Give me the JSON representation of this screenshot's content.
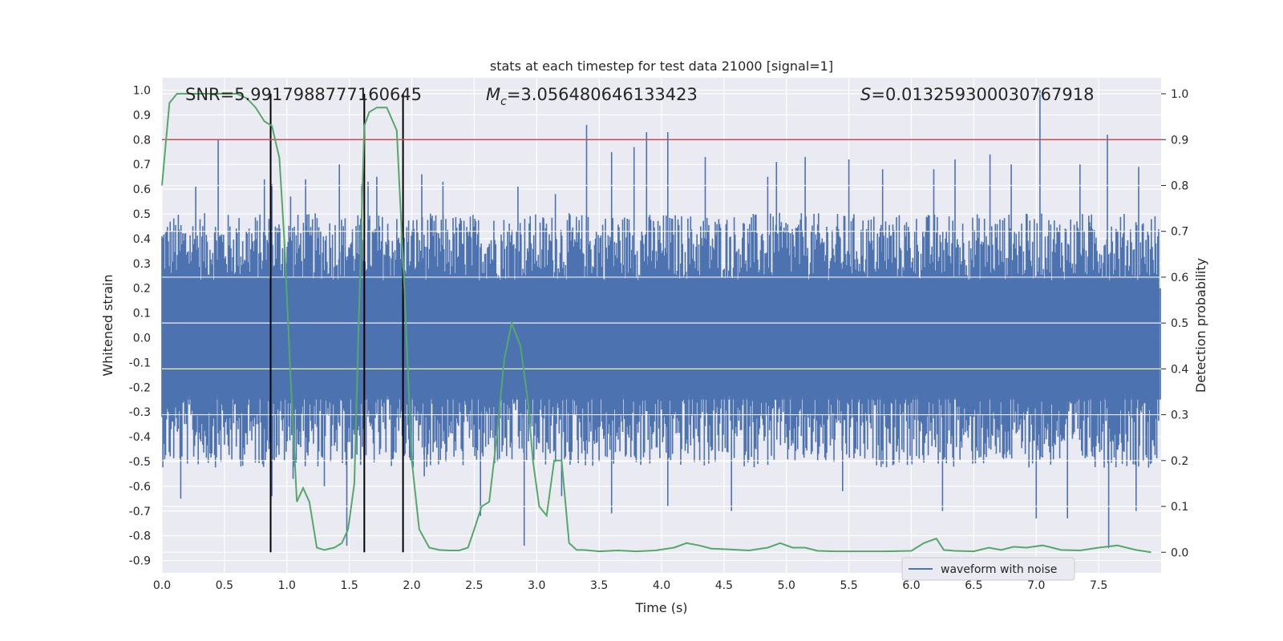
{
  "chart_data": {
    "type": "line",
    "title": "stats at each timestep for test data 21000 [signal=1]",
    "xlabel": "Time (s)",
    "ylabel": "Whitened strain",
    "ylabel_right": "Detection probability",
    "xlim": [
      0.0,
      8.0
    ],
    "ylim": [
      -0.95,
      1.05
    ],
    "ylim_right": [
      -0.045,
      1.035
    ],
    "x_ticks": [
      "0.0",
      "0.5",
      "1.0",
      "1.5",
      "2.0",
      "2.5",
      "3.0",
      "3.5",
      "4.0",
      "4.5",
      "5.0",
      "5.5",
      "6.0",
      "6.5",
      "7.0",
      "7.5"
    ],
    "y_ticks": [
      "1.0",
      "0.9",
      "0.8",
      "0.7",
      "0.6",
      "0.5",
      "0.4",
      "0.3",
      "0.2",
      "0.1",
      "0.0",
      "-0.1",
      "-0.2",
      "-0.3",
      "-0.4",
      "-0.5",
      "-0.6",
      "-0.7",
      "-0.8",
      "-0.9"
    ],
    "y_ticks_right": [
      "1.0",
      "0.9",
      "0.8",
      "0.7",
      "0.6",
      "0.5",
      "0.4",
      "0.3",
      "0.2",
      "0.1",
      "0.0"
    ],
    "grid": true,
    "legend_position": "lower-right",
    "annotations": {
      "snr": "SNR=5.9917988777160645",
      "mc_symbol": "M",
      "mc_sub": "c",
      "mc_value": "=3.056480646133423",
      "s_symbol": "S",
      "s_value": "=0.013259300030767918"
    },
    "series": [
      {
        "name": "waveform with noise",
        "axis": "left",
        "color": "#4c72b0",
        "envelope_base": 0.42,
        "upper_spikes": [
          [
            0.45,
            0.8
          ],
          [
            0.27,
            0.61
          ],
          [
            0.82,
            0.64
          ],
          [
            0.88,
            0.62
          ],
          [
            1.03,
            0.57
          ],
          [
            1.15,
            0.64
          ],
          [
            1.42,
            0.7
          ],
          [
            1.6,
            0.62
          ],
          [
            1.65,
            0.63
          ],
          [
            1.72,
            0.65
          ],
          [
            2.08,
            0.66
          ],
          [
            2.25,
            0.63
          ],
          [
            2.85,
            0.61
          ],
          [
            3.15,
            0.58
          ],
          [
            3.4,
            0.86
          ],
          [
            3.6,
            0.75
          ],
          [
            3.78,
            0.77
          ],
          [
            3.88,
            0.83
          ],
          [
            4.05,
            0.83
          ],
          [
            4.35,
            0.73
          ],
          [
            4.85,
            0.65
          ],
          [
            4.92,
            0.71
          ],
          [
            5.15,
            0.73
          ],
          [
            5.5,
            0.72
          ],
          [
            5.77,
            0.68
          ],
          [
            6.18,
            0.68
          ],
          [
            6.35,
            0.72
          ],
          [
            6.63,
            0.74
          ],
          [
            6.8,
            0.7
          ],
          [
            7.03,
            1.0
          ],
          [
            7.35,
            0.7
          ],
          [
            7.57,
            0.82
          ],
          [
            7.82,
            0.69
          ]
        ],
        "lower_spikes": [
          [
            0.15,
            -0.65
          ],
          [
            0.88,
            -0.64
          ],
          [
            1.05,
            -0.57
          ],
          [
            1.48,
            -0.84
          ],
          [
            1.3,
            -0.6
          ],
          [
            2.1,
            -0.56
          ],
          [
            2.55,
            -0.72
          ],
          [
            2.9,
            -0.84
          ],
          [
            3.2,
            -0.64
          ],
          [
            3.6,
            -0.71
          ],
          [
            4.05,
            -0.68
          ],
          [
            4.56,
            -0.7
          ],
          [
            5.45,
            -0.62
          ],
          [
            6.25,
            -0.7
          ],
          [
            7.0,
            -0.73
          ],
          [
            7.25,
            -0.73
          ],
          [
            7.58,
            -0.85
          ],
          [
            7.8,
            -0.7
          ]
        ]
      },
      {
        "name": "",
        "axis": "right",
        "color": "#55a868",
        "x": [
          0.0,
          0.06,
          0.12,
          0.2,
          0.3,
          0.4,
          0.5,
          0.6,
          0.68,
          0.75,
          0.82,
          0.88,
          0.94,
          0.98,
          1.03,
          1.08,
          1.13,
          1.18,
          1.24,
          1.3,
          1.38,
          1.44,
          1.49,
          1.54,
          1.58,
          1.62,
          1.66,
          1.72,
          1.8,
          1.88,
          1.94,
          2.0,
          2.06,
          2.14,
          2.22,
          2.3,
          2.38,
          2.45,
          2.5,
          2.56,
          2.62,
          2.68,
          2.74,
          2.8,
          2.87,
          2.93,
          2.97,
          3.02,
          3.08,
          3.14,
          3.2,
          3.26,
          3.32,
          3.38,
          3.5,
          3.65,
          3.8,
          3.95,
          4.1,
          4.2,
          4.3,
          4.4,
          4.55,
          4.7,
          4.85,
          4.95,
          5.0,
          5.05,
          5.15,
          5.25,
          5.4,
          5.6,
          5.8,
          6.0,
          6.1,
          6.2,
          6.26,
          6.35,
          6.5,
          6.62,
          6.72,
          6.82,
          6.92,
          7.05,
          7.1,
          7.2,
          7.35,
          7.5,
          7.65,
          7.8,
          7.92
        ],
        "values": [
          0.8,
          0.98,
          1.0,
          1.0,
          1.0,
          1.0,
          1.0,
          1.0,
          0.99,
          0.97,
          0.94,
          0.93,
          0.86,
          0.68,
          0.38,
          0.11,
          0.14,
          0.11,
          0.01,
          0.005,
          0.01,
          0.02,
          0.05,
          0.15,
          0.55,
          0.93,
          0.96,
          0.97,
          0.97,
          0.92,
          0.58,
          0.2,
          0.05,
          0.01,
          0.005,
          0.004,
          0.004,
          0.01,
          0.05,
          0.1,
          0.11,
          0.25,
          0.42,
          0.5,
          0.45,
          0.33,
          0.2,
          0.1,
          0.08,
          0.2,
          0.2,
          0.02,
          0.005,
          0.005,
          0.002,
          0.004,
          0.002,
          0.004,
          0.01,
          0.02,
          0.015,
          0.008,
          0.006,
          0.004,
          0.01,
          0.02,
          0.015,
          0.01,
          0.01,
          0.003,
          0.002,
          0.002,
          0.002,
          0.003,
          0.02,
          0.03,
          0.005,
          0.003,
          0.002,
          0.01,
          0.005,
          0.012,
          0.01,
          0.015,
          0.012,
          0.005,
          0.004,
          0.01,
          0.015,
          0.005,
          0.0
        ]
      }
    ],
    "vertical_lines": {
      "x": [
        0.87,
        1.62,
        1.93
      ],
      "color": "#000000"
    },
    "threshold_line": {
      "value": 0.9,
      "axis": "right",
      "color": "#c44e52"
    }
  }
}
